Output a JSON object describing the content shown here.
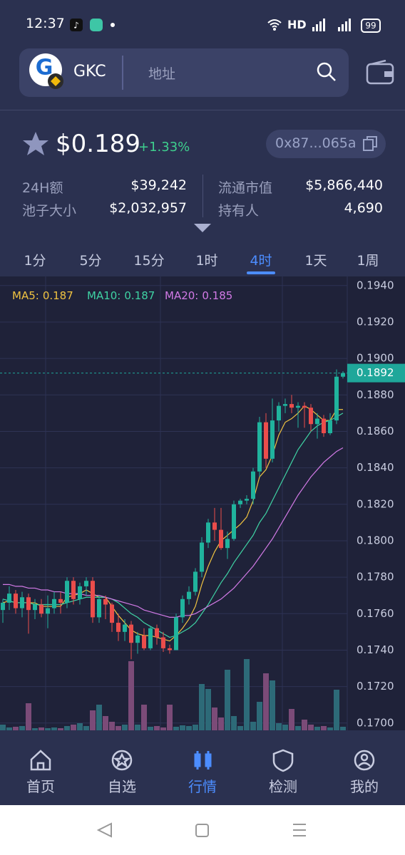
{
  "status_bar": {
    "time": "12:37",
    "network": "HD",
    "battery": "99"
  },
  "header": {
    "token": "GKC",
    "search_placeholder": "地址"
  },
  "price": {
    "value": "$0.189",
    "change": "+1.33%",
    "address": "0x87...065a"
  },
  "stats": [
    {
      "label": "24H额",
      "value": "$39,242"
    },
    {
      "label": "流通市值",
      "value": "$5,866,440"
    },
    {
      "label": "池子大小",
      "value": "$2,032,957"
    },
    {
      "label": "持有人",
      "value": "4,690"
    }
  ],
  "tabs": {
    "items": [
      "1分",
      "5分",
      "15分",
      "1时",
      "4时",
      "1天",
      "1周"
    ],
    "active": 4
  },
  "chart_data": {
    "type": "candlestick",
    "up_color": "#20b39d",
    "down_color": "#eb4d4b",
    "volume_up_color": "#2d6a78",
    "volume_down_color": "#7b4b78",
    "ylim": [
      0.1696,
      0.1945
    ],
    "yticks": [
      {
        "value": 0.194,
        "label": "0.1940"
      },
      {
        "value": 0.192,
        "label": "0.1920"
      },
      {
        "value": 0.19,
        "label": "0.1900"
      },
      {
        "value": 0.188,
        "label": "0.1880"
      },
      {
        "value": 0.186,
        "label": "0.1860"
      },
      {
        "value": 0.184,
        "label": "0.1840"
      },
      {
        "value": 0.182,
        "label": "0.1820"
      },
      {
        "value": 0.18,
        "label": "0.1800"
      },
      {
        "value": 0.178,
        "label": "0.1780"
      },
      {
        "value": 0.176,
        "label": "0.1760"
      },
      {
        "value": 0.174,
        "label": "0.1740"
      },
      {
        "value": 0.172,
        "label": "0.1720"
      },
      {
        "value": 0.17,
        "label": "0.1700"
      }
    ],
    "grid": true,
    "current_price": 0.1892,
    "current_color": "#1fa79a",
    "open": [
      0.1762,
      0.1766,
      0.1771,
      0.1763,
      0.1769,
      0.1762,
      0.1765,
      0.176,
      0.1763,
      0.1768,
      0.1766,
      0.1778,
      0.1768,
      0.1775,
      0.1778,
      0.1758,
      0.1768,
      0.1765,
      0.1755,
      0.175,
      0.1754,
      0.1744,
      0.1748,
      0.1741,
      0.1752,
      0.1747,
      0.1741,
      0.174,
      0.1758,
      0.1768,
      0.1772,
      0.1783,
      0.1799,
      0.181,
      0.1806,
      0.1796,
      0.1801,
      0.182,
      0.1822,
      0.1823,
      0.1838,
      0.1865,
      0.1845,
      0.1866,
      0.1874,
      0.1875,
      0.1873,
      0.1874,
      0.1873,
      0.1864,
      0.1867,
      0.1859,
      0.1866,
      0.189
    ],
    "high": [
      0.1768,
      0.1775,
      0.1773,
      0.1772,
      0.1771,
      0.1768,
      0.1768,
      0.177,
      0.1772,
      0.1772,
      0.178,
      0.178,
      0.1777,
      0.178,
      0.178,
      0.177,
      0.177,
      0.1766,
      0.176,
      0.1757,
      0.1756,
      0.175,
      0.1752,
      0.1753,
      0.1754,
      0.175,
      0.1743,
      0.176,
      0.177,
      0.1775,
      0.1785,
      0.1802,
      0.1812,
      0.1818,
      0.1818,
      0.1805,
      0.1822,
      0.1823,
      0.1825,
      0.184,
      0.1868,
      0.187,
      0.1878,
      0.1876,
      0.1878,
      0.188,
      0.1876,
      0.1876,
      0.1875,
      0.187,
      0.1869,
      0.187,
      0.1894,
      0.1893
    ],
    "low": [
      0.1755,
      0.1762,
      0.176,
      0.1758,
      0.1749,
      0.1757,
      0.1758,
      0.1752,
      0.176,
      0.176,
      0.1763,
      0.1765,
      0.1765,
      0.177,
      0.1755,
      0.1755,
      0.1757,
      0.175,
      0.1745,
      0.1745,
      0.1735,
      0.1738,
      0.174,
      0.174,
      0.1743,
      0.1739,
      0.1738,
      0.174,
      0.1755,
      0.1765,
      0.177,
      0.178,
      0.1796,
      0.18,
      0.1795,
      0.179,
      0.18,
      0.1818,
      0.182,
      0.182,
      0.1835,
      0.184,
      0.1843,
      0.186,
      0.187,
      0.187,
      0.1862,
      0.1862,
      0.186,
      0.1856,
      0.1857,
      0.1858,
      0.1864,
      0.1889
    ],
    "close": [
      0.1766,
      0.1771,
      0.1763,
      0.1769,
      0.1762,
      0.1765,
      0.176,
      0.1763,
      0.1768,
      0.1766,
      0.1778,
      0.1768,
      0.1775,
      0.1778,
      0.1758,
      0.1768,
      0.1765,
      0.1755,
      0.175,
      0.1754,
      0.1744,
      0.1748,
      0.1741,
      0.1752,
      0.1747,
      0.1741,
      0.174,
      0.1758,
      0.1768,
      0.1772,
      0.1783,
      0.1799,
      0.181,
      0.1806,
      0.1796,
      0.1801,
      0.182,
      0.1822,
      0.1823,
      0.1838,
      0.1865,
      0.1845,
      0.1866,
      0.1874,
      0.1875,
      0.1873,
      0.1874,
      0.1873,
      0.1864,
      0.1867,
      0.1859,
      0.1866,
      0.189,
      0.1892
    ],
    "volume": [
      8,
      4,
      5,
      6,
      38,
      3,
      4,
      3,
      4,
      3,
      6,
      8,
      10,
      6,
      28,
      36,
      20,
      12,
      6,
      8,
      97,
      8,
      36,
      5,
      6,
      4,
      36,
      5,
      7,
      6,
      8,
      65,
      58,
      32,
      18,
      85,
      20,
      6,
      100,
      12,
      40,
      80,
      70,
      10,
      8,
      30,
      6,
      15,
      8,
      5,
      6,
      4,
      57,
      5
    ],
    "series": [
      {
        "name": "MA5:",
        "legend_value": 0.187,
        "color": "#f0c341",
        "values": [
          0.1766,
          0.1767,
          0.1766,
          0.1766,
          0.1766,
          0.1766,
          0.1764,
          0.1764,
          0.1764,
          0.1764,
          0.1769,
          0.177,
          0.1771,
          0.1773,
          0.1771,
          0.1769,
          0.1769,
          0.1764,
          0.1759,
          0.1755,
          0.1751,
          0.1749,
          0.1748,
          0.1748,
          0.1747,
          0.1746,
          0.1745,
          0.1748,
          0.1752,
          0.1757,
          0.1764,
          0.1776,
          0.1786,
          0.1794,
          0.18,
          0.1803,
          0.1806,
          0.1809,
          0.1813,
          0.1822,
          0.1835,
          0.1839,
          0.1847,
          0.1858,
          0.1865,
          0.1867,
          0.187,
          0.1874,
          0.1872,
          0.1869,
          0.1866,
          0.1866,
          0.1872,
          0.1872
        ]
      },
      {
        "name": "MA10:",
        "legend_value": 0.187,
        "color": "#3fd3a4",
        "values": [
          0.1768,
          0.1767,
          0.1766,
          0.1766,
          0.1766,
          0.1765,
          0.1765,
          0.1765,
          0.1765,
          0.1765,
          0.1766,
          0.1767,
          0.1768,
          0.1769,
          0.1769,
          0.1769,
          0.1769,
          0.1768,
          0.1766,
          0.1763,
          0.176,
          0.1758,
          0.1755,
          0.1753,
          0.1751,
          0.1749,
          0.1747,
          0.1748,
          0.175,
          0.1752,
          0.1755,
          0.176,
          0.1765,
          0.1771,
          0.1777,
          0.1782,
          0.1788,
          0.1793,
          0.1798,
          0.1803,
          0.181,
          0.1815,
          0.1822,
          0.1829,
          0.1836,
          0.1843,
          0.185,
          0.1855,
          0.186,
          0.1863,
          0.1865,
          0.1866,
          0.1868,
          0.187
        ]
      },
      {
        "name": "MA20:",
        "legend_value": 0.185,
        "color": "#d27ae6",
        "values": [
          0.1776,
          0.1776,
          0.1775,
          0.1775,
          0.1774,
          0.1774,
          0.1773,
          0.1773,
          0.1772,
          0.1772,
          0.1771,
          0.1771,
          0.1771,
          0.177,
          0.177,
          0.177,
          0.1769,
          0.1768,
          0.1767,
          0.1766,
          0.1765,
          0.1764,
          0.1762,
          0.1761,
          0.176,
          0.1759,
          0.1758,
          0.1758,
          0.1759,
          0.1759,
          0.176,
          0.1762,
          0.1764,
          0.1766,
          0.1768,
          0.1771,
          0.1774,
          0.1778,
          0.1782,
          0.1786,
          0.1791,
          0.1796,
          0.1801,
          0.1807,
          0.1813,
          0.1819,
          0.1825,
          0.183,
          0.1835,
          0.1839,
          0.1843,
          0.1846,
          0.1849,
          0.1851
        ]
      }
    ]
  },
  "nav": {
    "items": [
      "首页",
      "自选",
      "行情",
      "检测",
      "我的"
    ],
    "active": 2
  }
}
